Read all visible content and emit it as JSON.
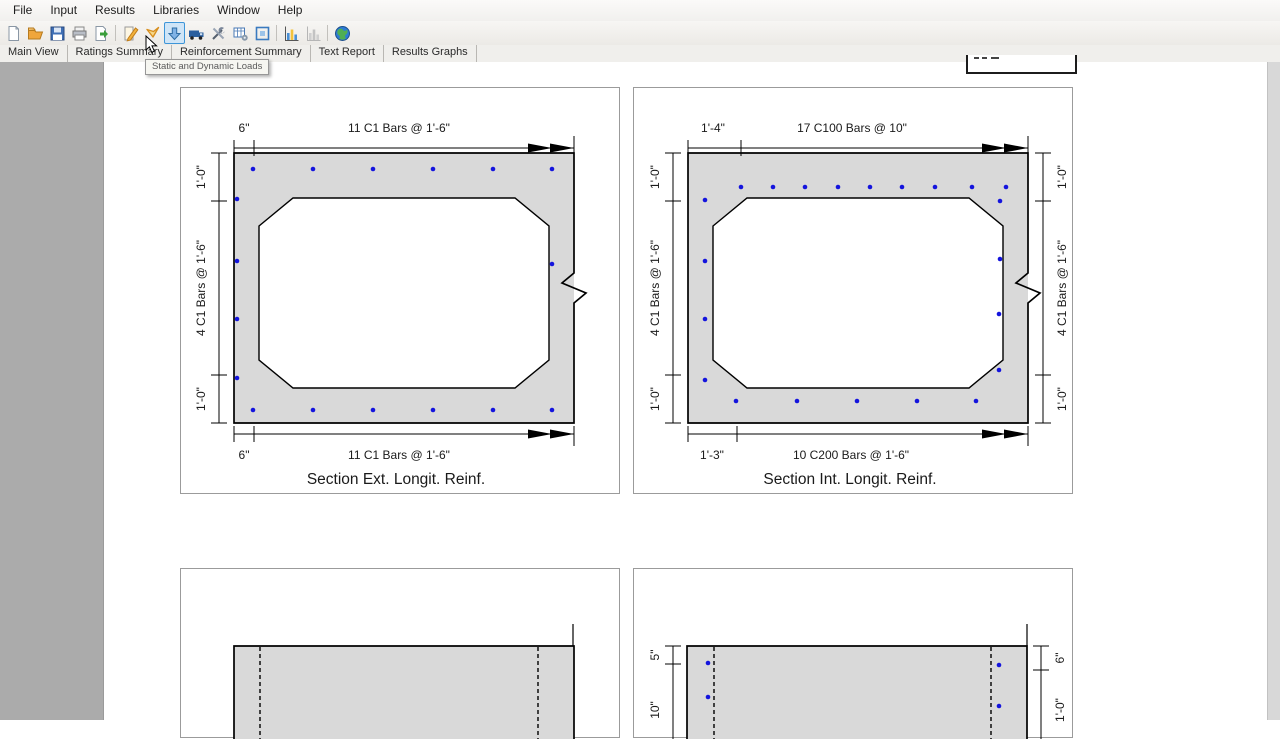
{
  "menu": {
    "items": [
      "File",
      "Input",
      "Results",
      "Libraries",
      "Window",
      "Help"
    ]
  },
  "toolbar": {
    "tooltip": "Static and Dynamic Loads",
    "icons": [
      "new-file-icon",
      "open-file-icon",
      "save-icon",
      "print-icon",
      "export-file-icon",
      "edit-document-icon",
      "orange-arrow-icon",
      "static-dynamic-loads-icon",
      "vehicle-icon",
      "tools-icon",
      "settings-table-icon",
      "fit-view-icon",
      "results-chart-icon",
      "results-chart-disabled-icon",
      "globe-icon"
    ]
  },
  "tabs": {
    "items": [
      "Main View",
      "Ratings Summary",
      "Reinforcement Summary",
      "Text Report",
      "Results Graphs"
    ]
  },
  "drawings": {
    "ext": {
      "caption": "Section Ext. Longit. Reinf.",
      "dims": {
        "top_left": "6\"",
        "top_main": "11 C1 Bars @ 1'-6\"",
        "bottom_left": "6\"",
        "bottom_main": "11 C1 Bars @ 1'-6\"",
        "side_top": "1'-0\"",
        "side_mid": "4 C1 Bars @ 1'-6\"",
        "side_bottom": "1'-0\""
      },
      "bars": [
        [
          72,
          81
        ],
        [
          132,
          81
        ],
        [
          192,
          81
        ],
        [
          252,
          81
        ],
        [
          312,
          81
        ],
        [
          371,
          81
        ],
        [
          72,
          322
        ],
        [
          132,
          322
        ],
        [
          192,
          322
        ],
        [
          252,
          322
        ],
        [
          312,
          322
        ],
        [
          371,
          322
        ],
        [
          56,
          111
        ],
        [
          56,
          173
        ],
        [
          56,
          231
        ],
        [
          56,
          290
        ],
        [
          371,
          176
        ]
      ]
    },
    "int": {
      "caption": "Section Int. Longit. Reinf.",
      "dims": {
        "top_left": "1'-4\"",
        "top_main": "17 C100 Bars @ 10\"",
        "bottom_left": "1'-3\"",
        "bottom_main": "10 C200 Bars @ 1'-6\"",
        "left_top": "1'-0\"",
        "left_mid": "4 C1 Bars @ 1'-6\"",
        "left_bottom": "1'-0\"",
        "right_top": "1'-0\"",
        "right_mid": "4 C1 Bars @ 1'-6\"",
        "right_bottom": "1'-0\""
      },
      "bars": [
        [
          107,
          99
        ],
        [
          139,
          99
        ],
        [
          171,
          99
        ],
        [
          204,
          99
        ],
        [
          236,
          99
        ],
        [
          268,
          99
        ],
        [
          301,
          99
        ],
        [
          338,
          99
        ],
        [
          372,
          99
        ],
        [
          71,
          112
        ],
        [
          71,
          173
        ],
        [
          71,
          231
        ],
        [
          71,
          292
        ],
        [
          366,
          113
        ],
        [
          366,
          171
        ],
        [
          365,
          226
        ],
        [
          365,
          282
        ],
        [
          102,
          313
        ],
        [
          163,
          313
        ],
        [
          223,
          313
        ],
        [
          283,
          313
        ],
        [
          342,
          313
        ]
      ]
    },
    "plan_left": {
      "bars": []
    },
    "plan_right": {
      "dims": {
        "left_top": "5\"",
        "left_bottom": "10\"",
        "right_top": "6\"",
        "right_bottom": "1'-0\""
      },
      "bars": [
        [
          74,
          94
        ],
        [
          74,
          128
        ],
        [
          365,
          96
        ],
        [
          365,
          137
        ]
      ]
    }
  },
  "colors": {
    "rebar": "#1414dd",
    "concrete": "#d9d9d9",
    "toolbar_highlight": "#cfe5f7"
  }
}
